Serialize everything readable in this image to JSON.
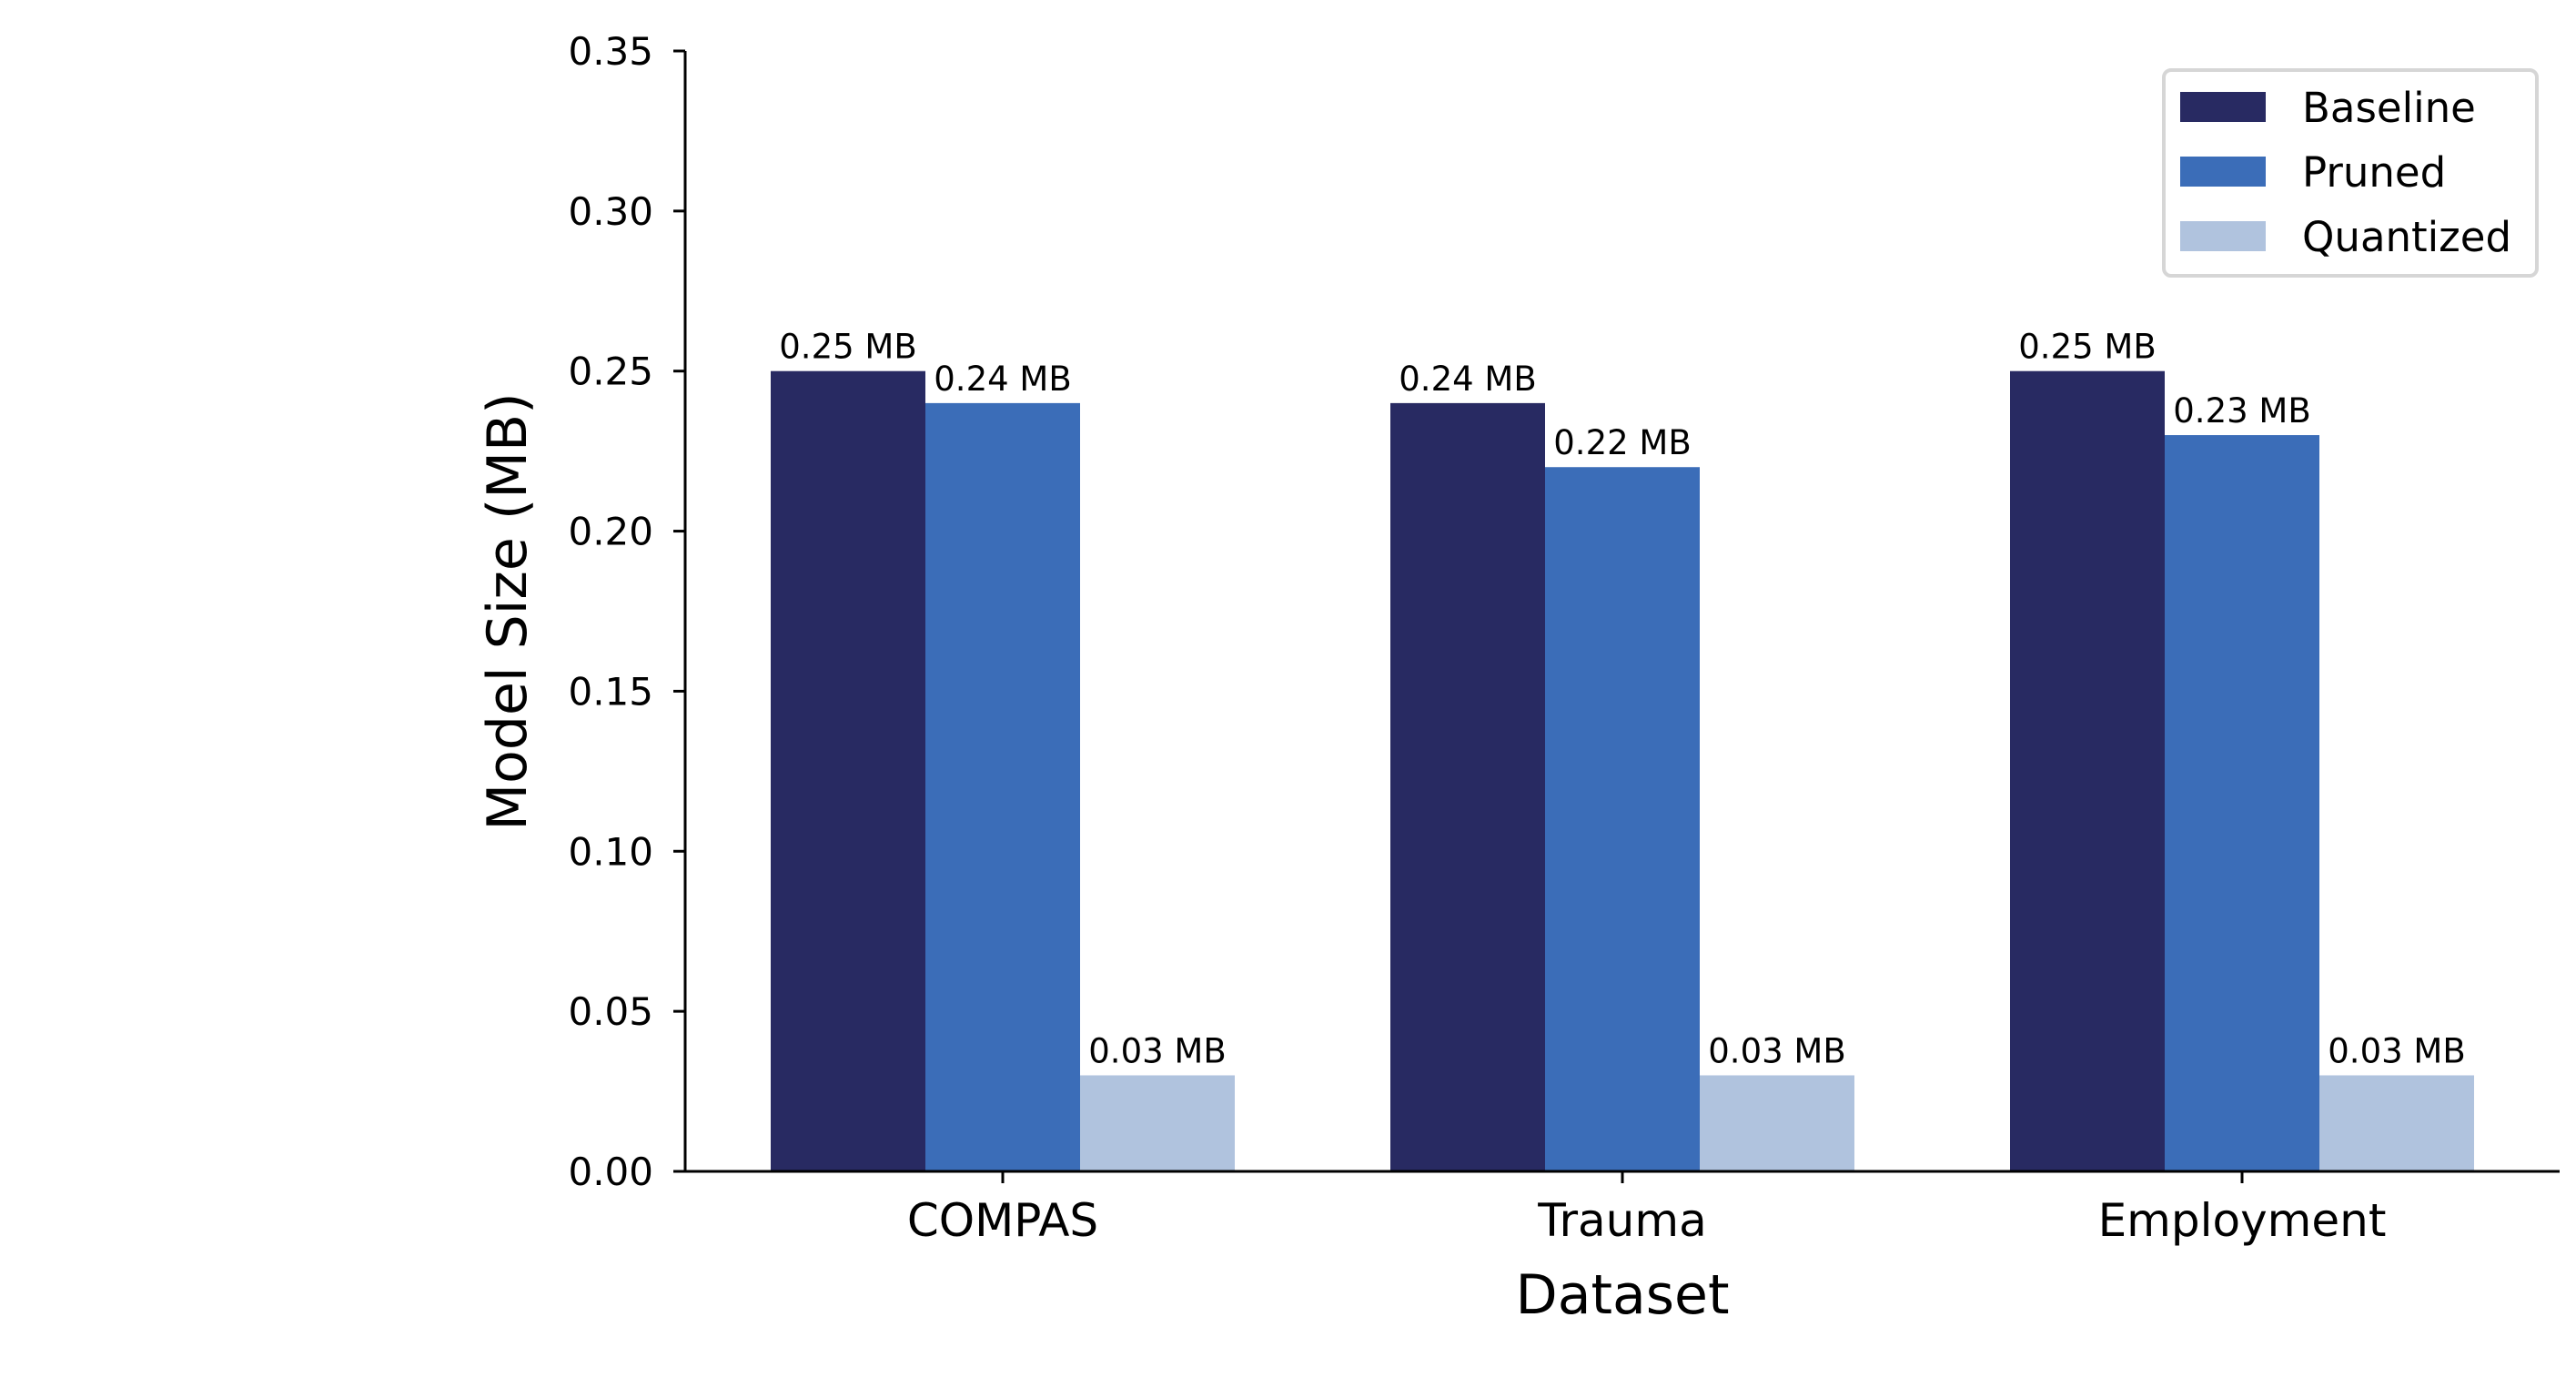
{
  "chart_data": {
    "type": "bar",
    "title": "",
    "xlabel": "Dataset",
    "ylabel": "Model Size (MB)",
    "categories": [
      "COMPAS",
      "Trauma",
      "Employment"
    ],
    "series": [
      {
        "name": "Baseline",
        "values": [
          0.25,
          0.24,
          0.25
        ],
        "labels": [
          "0.25 MB",
          "0.24 MB",
          "0.25 MB"
        ],
        "color": "#282a62"
      },
      {
        "name": "Pruned",
        "values": [
          0.24,
          0.22,
          0.23
        ],
        "labels": [
          "0.24 MB",
          "0.22 MB",
          "0.23 MB"
        ],
        "color": "#3b6db8"
      },
      {
        "name": "Quantized",
        "values": [
          0.03,
          0.03,
          0.03
        ],
        "labels": [
          "0.03 MB",
          "0.03 MB",
          "0.03 MB"
        ],
        "color": "#b0c3de"
      }
    ],
    "ylim": [
      0,
      0.35
    ],
    "yticks": [
      "0.00",
      "0.05",
      "0.10",
      "0.15",
      "0.20",
      "0.25",
      "0.30",
      "0.35"
    ],
    "grid": false,
    "legend_position": "top-right"
  }
}
